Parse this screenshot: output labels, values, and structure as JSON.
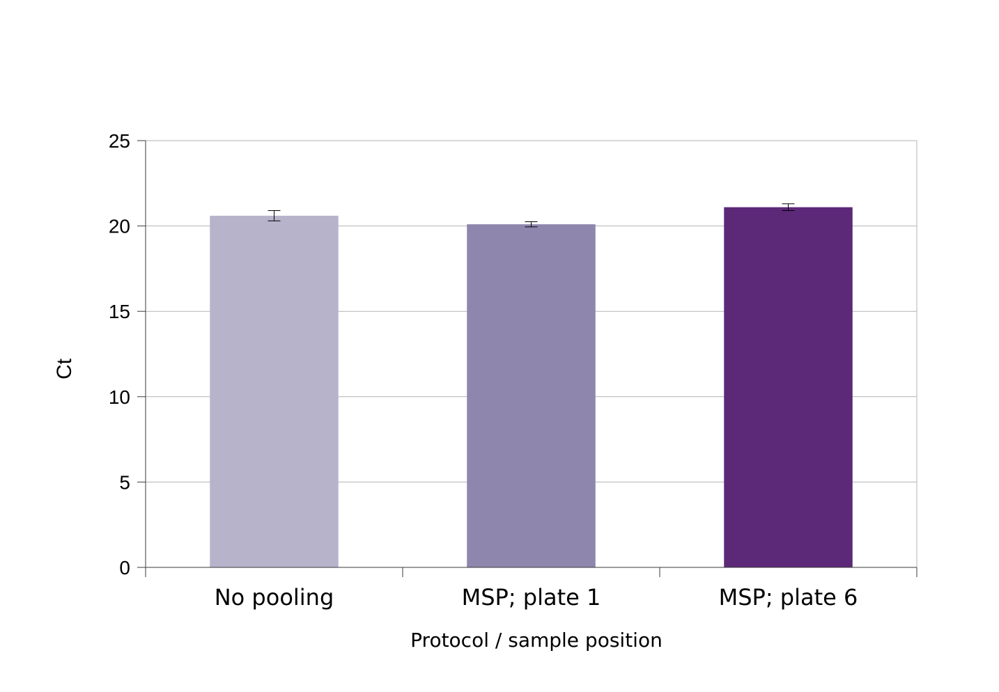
{
  "chart_data": {
    "type": "bar",
    "title": "",
    "xlabel": "Protocol / sample position",
    "ylabel": "Ct",
    "categories": [
      "No pooling",
      "MSP; plate 1",
      "MSP; plate 6"
    ],
    "values": [
      20.6,
      20.1,
      21.1
    ],
    "error": [
      0.3,
      0.15,
      0.2
    ],
    "colors": [
      "#b7b3cb",
      "#8e86ad",
      "#5c2878"
    ],
    "ylim": [
      0,
      25
    ],
    "yticks": [
      0,
      5,
      10,
      15,
      20,
      25
    ],
    "grid": true,
    "legend": "none"
  }
}
